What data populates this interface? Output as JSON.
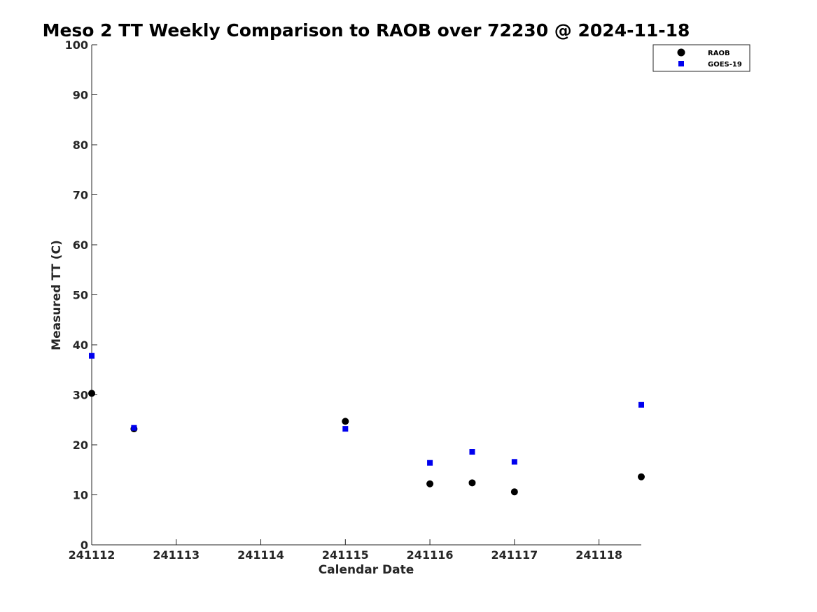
{
  "chart_data": {
    "type": "scatter",
    "title": "Meso 2 TT Weekly Comparison to RAOB over 72230 @ 2024-11-18",
    "xlabel": "Calendar Date",
    "ylabel": "Measured TT (C)",
    "x_ticks": [
      "241112",
      "241113",
      "241114",
      "241115",
      "241116",
      "241117",
      "241118"
    ],
    "x_tick_values": [
      0,
      1,
      2,
      3,
      4,
      5,
      6
    ],
    "xlim": [
      0,
      6.5
    ],
    "ylim": [
      0,
      100
    ],
    "y_ticks": [
      0,
      10,
      20,
      30,
      40,
      50,
      60,
      70,
      80,
      90,
      100
    ],
    "legend_position": "top-right",
    "series": [
      {
        "name": "RAOB",
        "marker": "circle",
        "color": "#000000",
        "points": [
          {
            "x": 0,
            "y": 30.3
          },
          {
            "x": 0.5,
            "y": 23.2
          },
          {
            "x": 3,
            "y": 24.7
          },
          {
            "x": 4,
            "y": 12.2
          },
          {
            "x": 4.5,
            "y": 12.4
          },
          {
            "x": 5,
            "y": 10.6
          },
          {
            "x": 6.5,
            "y": 13.6
          }
        ]
      },
      {
        "name": "GOES-19",
        "marker": "square",
        "color": "#0000ee",
        "points": [
          {
            "x": 0,
            "y": 37.8
          },
          {
            "x": 0.5,
            "y": 23.4
          },
          {
            "x": 3,
            "y": 23.2
          },
          {
            "x": 4,
            "y": 16.4
          },
          {
            "x": 4.5,
            "y": 18.6
          },
          {
            "x": 5,
            "y": 16.6
          },
          {
            "x": 6.5,
            "y": 28.0
          }
        ]
      }
    ]
  }
}
